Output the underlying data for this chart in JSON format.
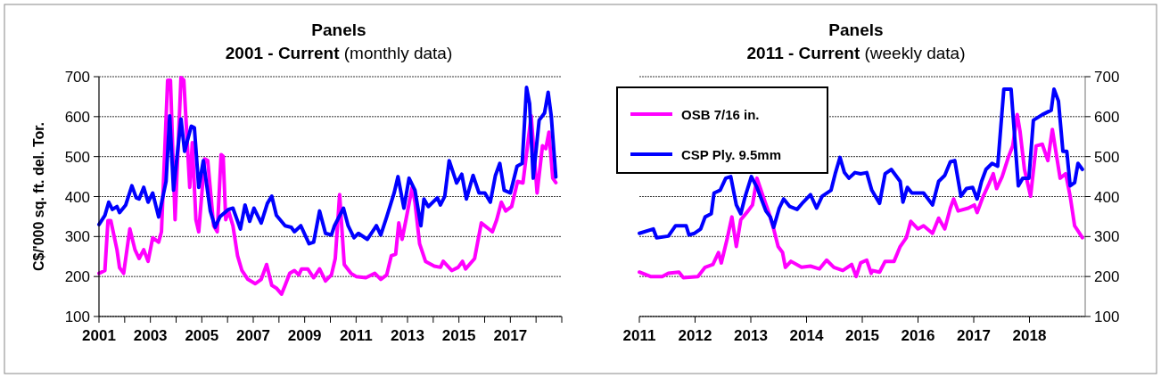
{
  "chart_data": [
    {
      "type": "line",
      "title": "Panels",
      "subtitle": "2001 - Current (monthly data)",
      "ylabel": "C$/'000 sq. ft. del. Tor.",
      "xlim": [
        2001,
        2019
      ],
      "xticks": [
        2001,
        {
          "value": 2002,
          "label": null
        },
        2003,
        {
          "value": 2004,
          "label": null
        },
        2005,
        {
          "value": 2006,
          "label": null
        },
        2007,
        {
          "value": 2008,
          "label": null
        },
        2009,
        {
          "value": 2010,
          "label": null
        },
        2011,
        {
          "value": 2012,
          "label": null
        },
        2013,
        {
          "value": 2014,
          "label": null
        },
        2015,
        {
          "value": 2016,
          "label": null
        },
        2017,
        {
          "value": 2018,
          "label": null
        },
        {
          "value": 2019,
          "label": null
        }
      ],
      "ylim": [
        100,
        700
      ],
      "yticks": [
        100,
        200,
        300,
        400,
        500,
        600,
        700
      ],
      "grid": "y",
      "line_style": "solid",
      "marker": "none",
      "series": [
        {
          "color": "#ff00ff",
          "x": [
            2001.0,
            2001.23,
            2001.35,
            2001.46,
            2001.7,
            2001.8,
            2001.96,
            2002.2,
            2002.4,
            2002.56,
            2002.74,
            2002.91,
            2003.09,
            2003.32,
            2003.43,
            2003.67,
            2003.78,
            2003.96,
            2004.19,
            2004.3,
            2004.53,
            2004.63,
            2004.77,
            2004.88,
            2005.11,
            2005.23,
            2005.46,
            2005.6,
            2005.75,
            2005.83,
            2005.93,
            2006.04,
            2006.21,
            2006.39,
            2006.56,
            2006.79,
            2007.08,
            2007.31,
            2007.52,
            2007.72,
            2007.9,
            2008.1,
            2008.24,
            2008.42,
            2008.6,
            2008.77,
            2008.88,
            2009.12,
            2009.35,
            2009.58,
            2009.81,
            2010.04,
            2010.19,
            2010.36,
            2010.54,
            2010.8,
            2011.0,
            2011.38,
            2011.73,
            2011.96,
            2012.19,
            2012.37,
            2012.54,
            2012.66,
            2012.79,
            2012.94,
            2013.18,
            2013.29,
            2013.47,
            2013.7,
            2014.04,
            2014.28,
            2014.39,
            2014.72,
            2014.97,
            2015.14,
            2015.26,
            2015.61,
            2015.87,
            2016.3,
            2016.47,
            2016.65,
            2016.82,
            2017.05,
            2017.28,
            2017.49,
            2017.81,
            2018.04,
            2018.25,
            2018.38,
            2018.5,
            2018.65,
            2018.77
          ],
          "values": [
            208,
            215,
            340,
            340,
            267,
            222,
            208,
            319,
            267,
            245,
            267,
            238,
            297,
            286,
            312,
            691,
            691,
            342,
            698,
            691,
            423,
            535,
            342,
            312,
            494,
            490,
            327,
            312,
            505,
            501,
            342,
            364,
            327,
            252,
            215,
            193,
            182,
            193,
            230,
            178,
            171,
            156,
            178,
            208,
            215,
            204,
            219,
            219,
            197,
            219,
            189,
            204,
            245,
            405,
            230,
            208,
            200,
            197,
            208,
            193,
            204,
            252,
            256,
            334,
            293,
            342,
            423,
            386,
            282,
            238,
            226,
            223,
            238,
            215,
            223,
            238,
            219,
            245,
            334,
            312,
            342,
            386,
            364,
            375,
            438,
            434,
            602,
            409,
            527,
            520,
            561,
            446,
            435
          ]
        },
        {
          "color": "#0000ff",
          "x": [
            2001.0,
            2001.23,
            2001.38,
            2001.52,
            2001.7,
            2001.8,
            2002.04,
            2002.28,
            2002.45,
            2002.56,
            2002.74,
            2002.91,
            2003.09,
            2003.32,
            2003.61,
            2003.75,
            2003.9,
            2004.19,
            2004.33,
            2004.59,
            2004.71,
            2004.88,
            2005.06,
            2005.33,
            2005.52,
            2005.7,
            2006.04,
            2006.21,
            2006.5,
            2006.68,
            2006.86,
            2007.03,
            2007.31,
            2007.55,
            2007.72,
            2007.9,
            2008.24,
            2008.48,
            2008.6,
            2008.85,
            2009.17,
            2009.35,
            2009.58,
            2009.81,
            2010.04,
            2010.16,
            2010.51,
            2010.69,
            2010.92,
            2011.09,
            2011.44,
            2011.79,
            2011.96,
            2012.19,
            2012.48,
            2012.63,
            2012.86,
            2013.06,
            2013.29,
            2013.52,
            2013.64,
            2013.81,
            2014.16,
            2014.28,
            2014.45,
            2014.62,
            2014.91,
            2015.11,
            2015.29,
            2015.55,
            2015.78,
            2016.01,
            2016.22,
            2016.42,
            2016.59,
            2016.76,
            2017.0,
            2017.26,
            2017.46,
            2017.63,
            2017.75,
            2017.89,
            2018.12,
            2018.33,
            2018.47,
            2018.59,
            2018.77
          ],
          "values": [
            330,
            353,
            386,
            368,
            375,
            360,
            379,
            427,
            397,
            394,
            423,
            386,
            409,
            349,
            438,
            602,
            416,
            594,
            513,
            576,
            572,
            423,
            490,
            364,
            323,
            349,
            368,
            371,
            319,
            379,
            338,
            371,
            334,
            383,
            401,
            353,
            327,
            323,
            312,
            327,
            282,
            286,
            364,
            308,
            304,
            327,
            371,
            327,
            297,
            308,
            293,
            327,
            304,
            349,
            409,
            450,
            371,
            446,
            416,
            327,
            394,
            375,
            397,
            379,
            401,
            490,
            434,
            456,
            394,
            453,
            409,
            409,
            386,
            453,
            483,
            416,
            409,
            476,
            483,
            673,
            632,
            446,
            591,
            609,
            661,
            602,
            449
          ]
        }
      ]
    },
    {
      "type": "line",
      "title": "Panels",
      "subtitle": "2011 - Current (weekly data)",
      "xlim": [
        2011,
        2019
      ],
      "xticks": [
        2011,
        2012,
        2013,
        2014,
        2015,
        2016,
        2017,
        2018
      ],
      "y2lim": [
        100,
        700
      ],
      "y2ticks": [
        100,
        200,
        300,
        400,
        500,
        600,
        700
      ],
      "grid": "y",
      "legend": "top left",
      "line_style": "solid",
      "marker": "none",
      "series": [
        {
          "name": "OSB 7/16 in.",
          "color": "#ff00ff",
          "axis": "y2",
          "x": [
            2011.0,
            2011.2,
            2011.41,
            2011.52,
            2011.71,
            2011.79,
            2012.05,
            2012.18,
            2012.32,
            2012.42,
            2012.47,
            2012.58,
            2012.66,
            2012.74,
            2012.82,
            2012.95,
            2013.03,
            2013.11,
            2013.22,
            2013.33,
            2013.41,
            2013.49,
            2013.57,
            2013.62,
            2013.72,
            2013.91,
            2014.07,
            2014.23,
            2014.36,
            2014.49,
            2014.65,
            2014.81,
            2014.89,
            2014.97,
            2015.08,
            2015.16,
            2015.18,
            2015.31,
            2015.41,
            2015.57,
            2015.68,
            2015.79,
            2015.87,
            2016.0,
            2016.1,
            2016.26,
            2016.37,
            2016.48,
            2016.58,
            2016.64,
            2016.72,
            2016.9,
            2017.01,
            2017.06,
            2017.17,
            2017.27,
            2017.35,
            2017.41,
            2017.51,
            2017.62,
            2017.7,
            2017.78,
            2017.83,
            2017.91,
            2018.02,
            2018.12,
            2018.23,
            2018.33,
            2018.41,
            2018.55,
            2018.65,
            2018.73,
            2018.81,
            2018.95
          ],
          "values": [
            211,
            200,
            200,
            208,
            211,
            197,
            200,
            223,
            230,
            260,
            234,
            297,
            349,
            275,
            342,
            364,
            379,
            446,
            401,
            357,
            319,
            275,
            260,
            223,
            238,
            223,
            226,
            219,
            241,
            223,
            215,
            230,
            200,
            234,
            241,
            208,
            215,
            211,
            238,
            238,
            275,
            297,
            338,
            319,
            327,
            308,
            346,
            319,
            371,
            394,
            364,
            371,
            379,
            360,
            401,
            431,
            457,
            420,
            450,
            498,
            527,
            605,
            564,
            468,
            401,
            527,
            531,
            490,
            568,
            446,
            457,
            401,
            327,
            297
          ]
        },
        {
          "name": "CSP Ply. 9.5mm",
          "color": "#0000ff",
          "axis": "y2",
          "x": [
            2011.0,
            2011.25,
            2011.31,
            2011.52,
            2011.65,
            2011.84,
            2011.89,
            2011.99,
            2012.1,
            2012.18,
            2012.29,
            2012.34,
            2012.45,
            2012.55,
            2012.64,
            2012.74,
            2012.82,
            2012.9,
            2013.01,
            2013.11,
            2013.27,
            2013.35,
            2013.41,
            2013.51,
            2013.59,
            2013.7,
            2013.83,
            2013.94,
            2014.07,
            2014.18,
            2014.28,
            2014.44,
            2014.52,
            2014.6,
            2014.68,
            2014.76,
            2014.87,
            2014.97,
            2015.08,
            2015.17,
            2015.31,
            2015.41,
            2015.52,
            2015.68,
            2015.73,
            2015.81,
            2015.89,
            2016.1,
            2016.26,
            2016.37,
            2016.48,
            2016.58,
            2016.66,
            2016.77,
            2016.87,
            2016.98,
            2017.06,
            2017.14,
            2017.22,
            2017.33,
            2017.43,
            2017.54,
            2017.67,
            2017.8,
            2017.88,
            2017.99,
            2018.07,
            2018.23,
            2018.39,
            2018.44,
            2018.52,
            2018.6,
            2018.67,
            2018.73,
            2018.81,
            2018.87,
            2018.95
          ],
          "values": [
            308,
            319,
            297,
            301,
            327,
            327,
            304,
            308,
            319,
            349,
            357,
            409,
            416,
            446,
            450,
            379,
            357,
            401,
            450,
            423,
            364,
            349,
            323,
            371,
            394,
            375,
            368,
            386,
            405,
            371,
            401,
            416,
            460,
            498,
            460,
            446,
            460,
            457,
            460,
            416,
            383,
            457,
            468,
            438,
            386,
            423,
            409,
            409,
            379,
            438,
            453,
            487,
            490,
            401,
            420,
            423,
            394,
            438,
            468,
            483,
            476,
            669,
            669,
            427,
            446,
            446,
            591,
            605,
            616,
            669,
            639,
            513,
            513,
            427,
            435,
            483,
            468
          ]
        }
      ]
    }
  ]
}
